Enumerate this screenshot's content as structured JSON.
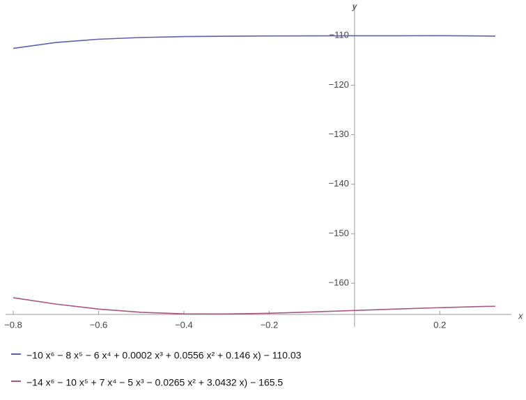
{
  "chart_data": {
    "type": "line",
    "x_label": "x",
    "y_label": "y",
    "x": [
      -0.8,
      -0.7,
      -0.6,
      -0.5,
      -0.4,
      -0.3,
      -0.2,
      -0.1,
      0,
      0.1,
      0.2,
      0.3,
      0.33
    ],
    "series": [
      {
        "name": "−10 x⁶ − 8 x⁵ − 6 x⁴ + 0.0002 x³ + 0.0556 x² + 0.146 x) − 110.03",
        "color": "#5e5eb4",
        "values": [
          -112.57,
          -111.38,
          -110.72,
          -110.37,
          -110.19,
          -110.11,
          -110.06,
          -110.04,
          -110.03,
          -110.02,
          -110.01,
          -110.06,
          -110.09
        ]
      },
      {
        "name": "−14 x⁶ − 10 x⁵ + 7 x⁴ − 5 x³ − 0.0265 x² + 3.0432 x) − 165.5",
        "color": "#a8567f",
        "values": [
          -162.92,
          -164.21,
          -165.22,
          -165.87,
          -166.18,
          -166.21,
          -166.06,
          -165.8,
          -165.5,
          -165.2,
          -164.93,
          -164.7,
          -164.65
        ]
      }
    ],
    "xlim": [
      -0.8,
      0.335
    ],
    "ylim": [
      -166.3,
      -102.8
    ],
    "xticks": [
      {
        "value": -0.8,
        "label": "−0.8"
      },
      {
        "value": -0.6,
        "label": "−0.6"
      },
      {
        "value": -0.4,
        "label": "−0.4"
      },
      {
        "value": -0.2,
        "label": "−0.2"
      },
      {
        "value": 0.2,
        "label": "0.2"
      }
    ],
    "yticks": [
      {
        "value": -110,
        "label": "−110"
      },
      {
        "value": -120,
        "label": "−120"
      },
      {
        "value": -130,
        "label": "−130"
      },
      {
        "value": -140,
        "label": "−140"
      },
      {
        "value": -150,
        "label": "−150"
      },
      {
        "value": -160,
        "label": "−160"
      }
    ],
    "legend": "bottom"
  }
}
